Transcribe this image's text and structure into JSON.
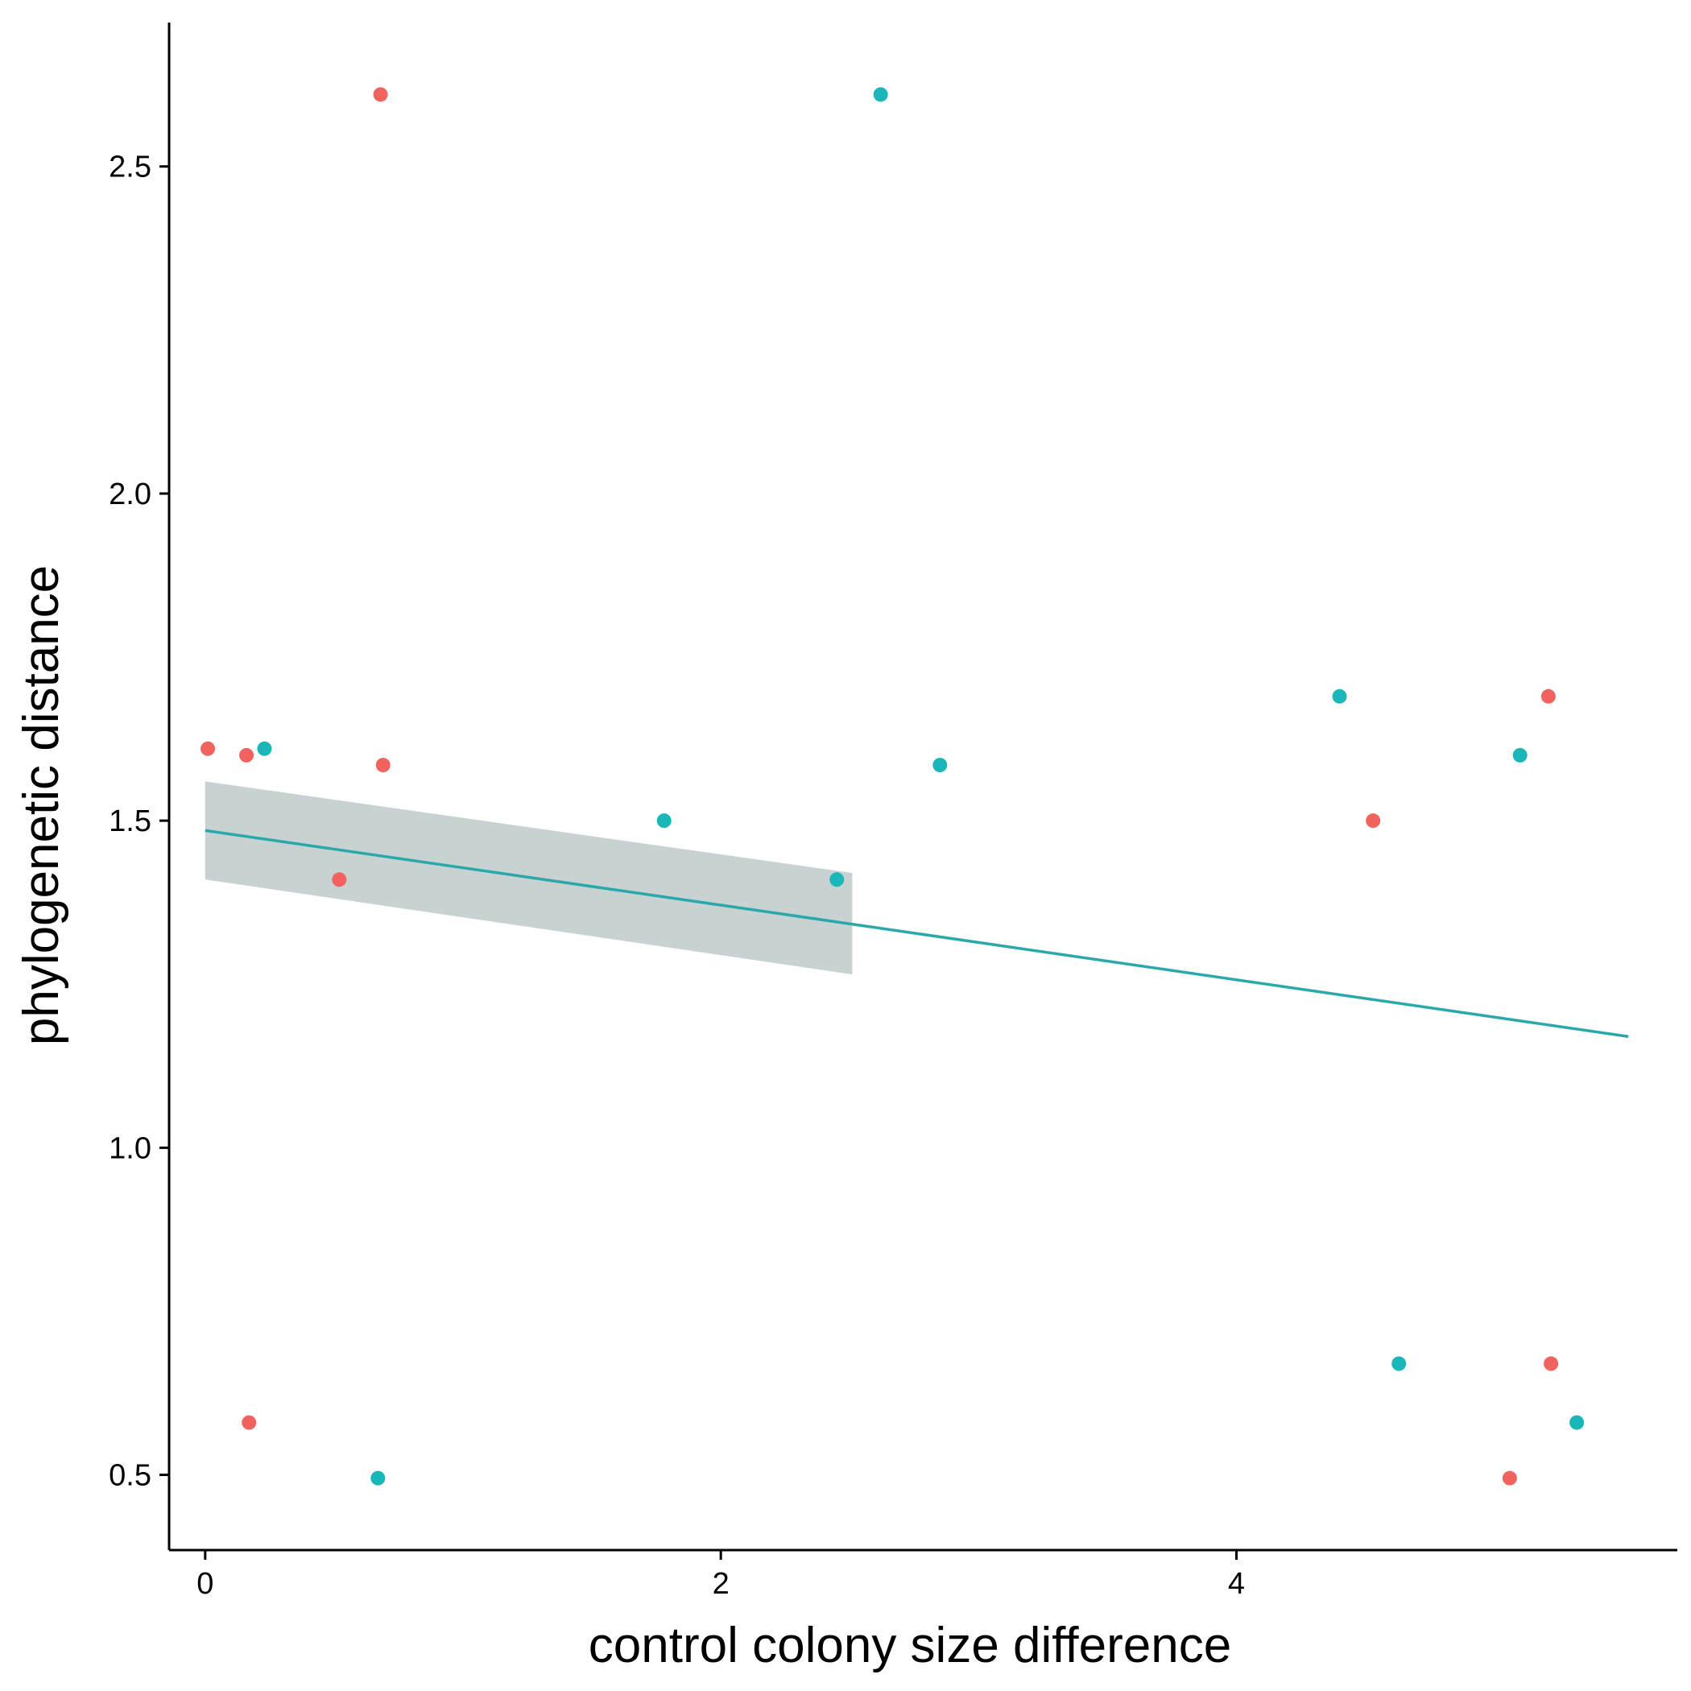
{
  "chart_data": {
    "type": "scatter",
    "xlabel": "control colony size difference",
    "ylabel": "phylogenetic distance",
    "xlim": [
      -0.14,
      5.71
    ],
    "ylim": [
      0.385,
      2.72
    ],
    "x_ticks": [
      0,
      2,
      4
    ],
    "x_tick_labels": [
      "0",
      "2",
      "4"
    ],
    "y_ticks": [
      0.5,
      1.0,
      1.5,
      2.0,
      2.5
    ],
    "y_tick_labels": [
      "0.5",
      "1.0",
      "1.5",
      "2.0",
      "2.5"
    ],
    "grid": false,
    "legend": "none",
    "series": [
      {
        "color": "#F0635E",
        "points": [
          {
            "x": 0.01,
            "y": 1.61
          },
          {
            "x": 0.16,
            "y": 1.6
          },
          {
            "x": 0.17,
            "y": 0.58
          },
          {
            "x": 0.52,
            "y": 1.41
          },
          {
            "x": 0.68,
            "y": 2.61
          },
          {
            "x": 0.69,
            "y": 1.585
          },
          {
            "x": 4.53,
            "y": 1.5
          },
          {
            "x": 5.06,
            "y": 0.495
          },
          {
            "x": 5.21,
            "y": 1.69
          },
          {
            "x": 5.22,
            "y": 0.67
          }
        ]
      },
      {
        "color": "#1BB6B7",
        "points": [
          {
            "x": 0.23,
            "y": 1.61
          },
          {
            "x": 0.67,
            "y": 0.495
          },
          {
            "x": 1.78,
            "y": 1.5
          },
          {
            "x": 2.45,
            "y": 1.41
          },
          {
            "x": 2.62,
            "y": 2.61
          },
          {
            "x": 2.85,
            "y": 1.585
          },
          {
            "x": 4.4,
            "y": 1.69
          },
          {
            "x": 4.63,
            "y": 0.67
          },
          {
            "x": 5.1,
            "y": 1.6
          },
          {
            "x": 5.32,
            "y": 0.58
          }
        ]
      }
    ],
    "fit": {
      "color": "#2AA8AA",
      "band_color": "#C8D2D2",
      "line": {
        "x": [
          0.0,
          5.52
        ],
        "y": [
          1.485,
          1.17
        ]
      },
      "band": {
        "x": [
          0.0,
          2.51
        ],
        "y_upper": [
          1.56,
          1.42
        ],
        "y_lower": [
          1.41,
          1.265
        ]
      }
    }
  }
}
